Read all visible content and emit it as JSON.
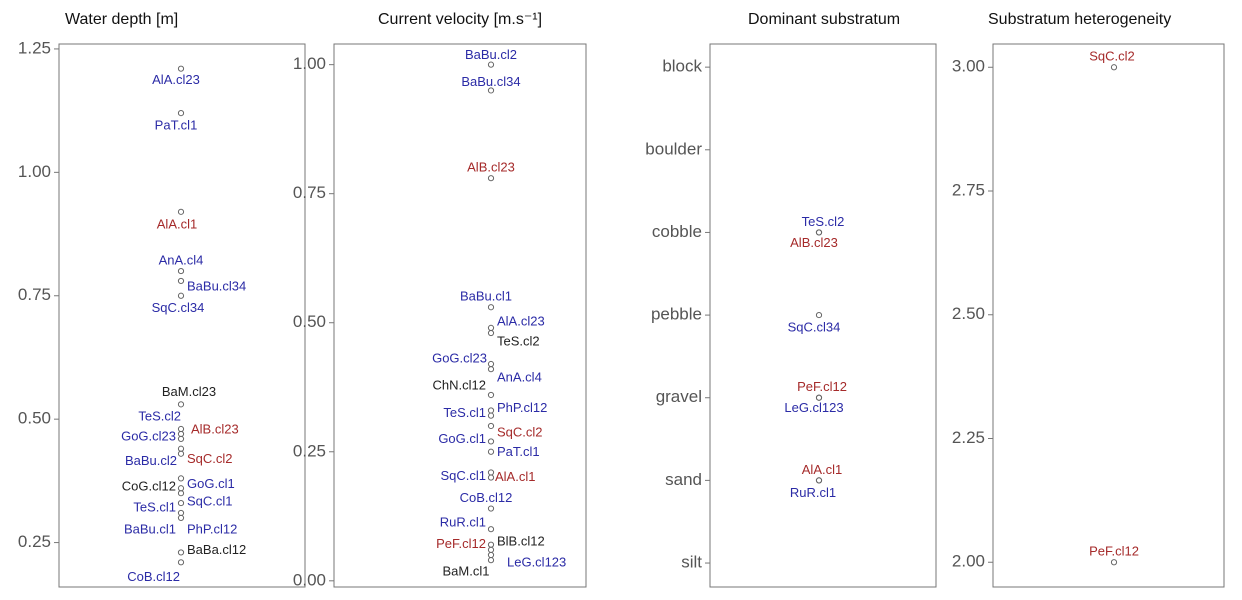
{
  "chart_data": [
    {
      "type": "scatter",
      "title": "Water depth [m]",
      "ylim": [
        0.16,
        1.26
      ],
      "yticks": [
        0.25,
        {
          "value": 0.5,
          "label": "0.50"
        },
        0.75,
        {
          "value": 1,
          "label": "1.00"
        },
        1.25
      ],
      "labels": [
        "AlA.cl23",
        "PaT.cl1",
        "AlA.cl1",
        "AnA.cl4",
        "BaBu.cl34",
        "SqC.cl34",
        "BaM.cl23",
        "TeS.cl2",
        "AlB.cl23",
        "GoG.cl23",
        "BaBu.cl2",
        "SqC.cl2",
        "GoG.cl1",
        "CoG.cl12",
        "SqC.cl1",
        "TeS.cl1",
        "BaBu.cl1",
        "PhP.cl12",
        "BaBa.cl12",
        "CoB.cl12"
      ],
      "values": [
        1.21,
        1.12,
        0.92,
        0.8,
        0.78,
        0.75,
        0.53,
        0.48,
        0.47,
        0.46,
        0.44,
        0.43,
        0.38,
        0.36,
        0.35,
        0.33,
        0.31,
        0.3,
        0.23,
        0.21
      ],
      "label_colors": [
        "#2b2ba6",
        "#2b2ba6",
        "#a52a2a",
        "#2b2ba6",
        "#2b2ba6",
        "#2b2ba6",
        "#222222",
        "#2b2ba6",
        "#a52a2a",
        "#2b2ba6",
        "#2b2ba6",
        "#a52a2a",
        "#2b2ba6",
        "#222222",
        "#2b2ba6",
        "#2b2ba6",
        "#2b2ba6",
        "#2b2ba6",
        "#222222",
        "#2b2ba6"
      ]
    },
    {
      "type": "scatter",
      "title": "Current velocity [m.s⁻¹]",
      "ylim": [
        -0.012,
        1.04
      ],
      "yticks": [
        {
          "value": 0,
          "label": "0.00"
        },
        0.25,
        {
          "value": 0.5,
          "label": "0.50"
        },
        0.75,
        {
          "value": 1,
          "label": "1.00"
        }
      ],
      "labels": [
        "BaBu.cl2",
        "BaBu.cl34",
        "AlB.cl23",
        "BaBu.cl1",
        "AlA.cl23",
        "TeS.cl2",
        "GoG.cl23",
        "AnA.cl4",
        "ChN.cl12",
        "TeS.cl1",
        "PhP.cl12",
        "SqC.cl2",
        "GoG.cl1",
        "PaT.cl1",
        "SqC.cl1",
        "AlA.cl1",
        "CoB.cl12",
        "RuR.cl1",
        "PeF.cl12",
        "BlB.cl12",
        "LeG.cl123",
        "BaM.cl1"
      ],
      "values": [
        1.0,
        0.95,
        0.78,
        0.53,
        0.49,
        0.48,
        0.42,
        0.41,
        0.36,
        0.33,
        0.32,
        0.3,
        0.27,
        0.25,
        0.21,
        0.2,
        0.14,
        0.1,
        0.07,
        0.06,
        0.05,
        0.04
      ],
      "label_colors": [
        "#2b2ba6",
        "#2b2ba6",
        "#a52a2a",
        "#2b2ba6",
        "#2b2ba6",
        "#222222",
        "#2b2ba6",
        "#2b2ba6",
        "#222222",
        "#2b2ba6",
        "#2b2ba6",
        "#a52a2a",
        "#2b2ba6",
        "#2b2ba6",
        "#2b2ba6",
        "#a52a2a",
        "#2b2ba6",
        "#2b2ba6",
        "#a52a2a",
        "#222222",
        "#2b2ba6",
        "#222222"
      ]
    },
    {
      "type": "scatter",
      "title": "Dominant substratum",
      "ylim": [
        0.71,
        7.28
      ],
      "yticks": [
        {
          "value": 1,
          "label": "silt"
        },
        {
          "value": 2,
          "label": "sand"
        },
        {
          "value": 3,
          "label": "gravel"
        },
        {
          "value": 4,
          "label": "pebble"
        },
        {
          "value": 5,
          "label": "cobble"
        },
        {
          "value": 6,
          "label": "boulder"
        },
        {
          "value": 7,
          "label": "block"
        }
      ],
      "labels": [
        "TeS.cl2",
        "AlB.cl23",
        "SqC.cl34",
        "PeF.cl12",
        "LeG.cl123",
        "AlA.cl1",
        "RuR.cl1"
      ],
      "values": [
        5,
        5,
        4,
        3,
        3,
        2,
        2
      ],
      "label_colors": [
        "#2b2ba6",
        "#a52a2a",
        "#2b2ba6",
        "#a52a2a",
        "#2b2ba6",
        "#a52a2a",
        "#2b2ba6"
      ]
    },
    {
      "type": "scatter",
      "title": "Substratum heterogeneity",
      "ylim": [
        1.95,
        3.047
      ],
      "yticks": [
        {
          "value": 2,
          "label": "2.00"
        },
        2.25,
        {
          "value": 2.5,
          "label": "2.50"
        },
        2.75,
        {
          "value": 3,
          "label": "3.00"
        }
      ],
      "labels": [
        "SqC.cl2",
        "PeF.cl12"
      ],
      "values": [
        3.0,
        2.0
      ],
      "label_colors": [
        "#a52a2a",
        "#a52a2a"
      ]
    }
  ]
}
